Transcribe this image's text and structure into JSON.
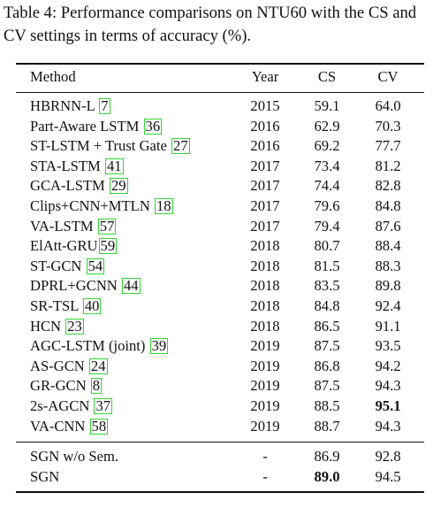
{
  "caption": "Table 4: Performance comparisons on NTU60 with the CS and CV settings in terms of accuracy (%).",
  "table": {
    "headers": {
      "method": "Method",
      "year": "Year",
      "cs": "CS",
      "cv": "CV"
    },
    "rows": [
      {
        "method": "HBRNN-L ",
        "ref": "7",
        "year": "2015",
        "cs": "59.1",
        "cv": "64.0"
      },
      {
        "method": "Part-Aware LSTM ",
        "ref": "36",
        "year": "2016",
        "cs": "62.9",
        "cv": "70.3"
      },
      {
        "method": "ST-LSTM + Trust Gate ",
        "ref": "27",
        "year": "2016",
        "cs": "69.2",
        "cv": "77.7"
      },
      {
        "method": "STA-LSTM ",
        "ref": "41",
        "year": "2017",
        "cs": "73.4",
        "cv": "81.2"
      },
      {
        "method": "GCA-LSTM ",
        "ref": "29",
        "year": "2017",
        "cs": "74.4",
        "cv": "82.8"
      },
      {
        "method": "Clips+CNN+MTLN ",
        "ref": "18",
        "year": "2017",
        "cs": "79.6",
        "cv": "84.8"
      },
      {
        "method": "VA-LSTM ",
        "ref": "57",
        "year": "2017",
        "cs": "79.4",
        "cv": "87.6"
      },
      {
        "method": "ElAtt-GRU",
        "ref": "59",
        "year": "2018",
        "cs": "80.7",
        "cv": "88.4"
      },
      {
        "method": "ST-GCN ",
        "ref": "54",
        "year": "2018",
        "cs": "81.5",
        "cv": "88.3"
      },
      {
        "method": "DPRL+GCNN ",
        "ref": "44",
        "year": "2018",
        "cs": "83.5",
        "cv": "89.8"
      },
      {
        "method": "SR-TSL ",
        "ref": "40",
        "year": "2018",
        "cs": "84.8",
        "cv": "92.4"
      },
      {
        "method": "HCN ",
        "ref": "23",
        "year": "2018",
        "cs": "86.5",
        "cv": "91.1"
      },
      {
        "method": "AGC-LSTM (joint) ",
        "ref": "39",
        "year": "2019",
        "cs": "87.5",
        "cv": "93.5"
      },
      {
        "method": "AS-GCN ",
        "ref": "24",
        "year": "2019",
        "cs": "86.8",
        "cv": "94.2"
      },
      {
        "method": "GR-GCN ",
        "ref": "8",
        "year": "2019",
        "cs": "87.5",
        "cv": "94.3"
      },
      {
        "method": "2s-AGCN ",
        "ref": "37",
        "year": "2019",
        "cs": "88.5",
        "cv": "95.1",
        "cv_bold": true
      },
      {
        "method": "VA-CNN ",
        "ref": "58",
        "year": "2019",
        "cs": "88.7",
        "cv": "94.3"
      }
    ],
    "ours": [
      {
        "method": "SGN w/o Sem.",
        "year": "-",
        "cs": "86.9",
        "cv": "92.8"
      },
      {
        "method": "SGN",
        "year": "-",
        "cs": "89.0",
        "cv": "94.5",
        "cs_bold": true
      }
    ]
  },
  "colors": {
    "text": "#111111",
    "citation_box": "#33d433"
  }
}
